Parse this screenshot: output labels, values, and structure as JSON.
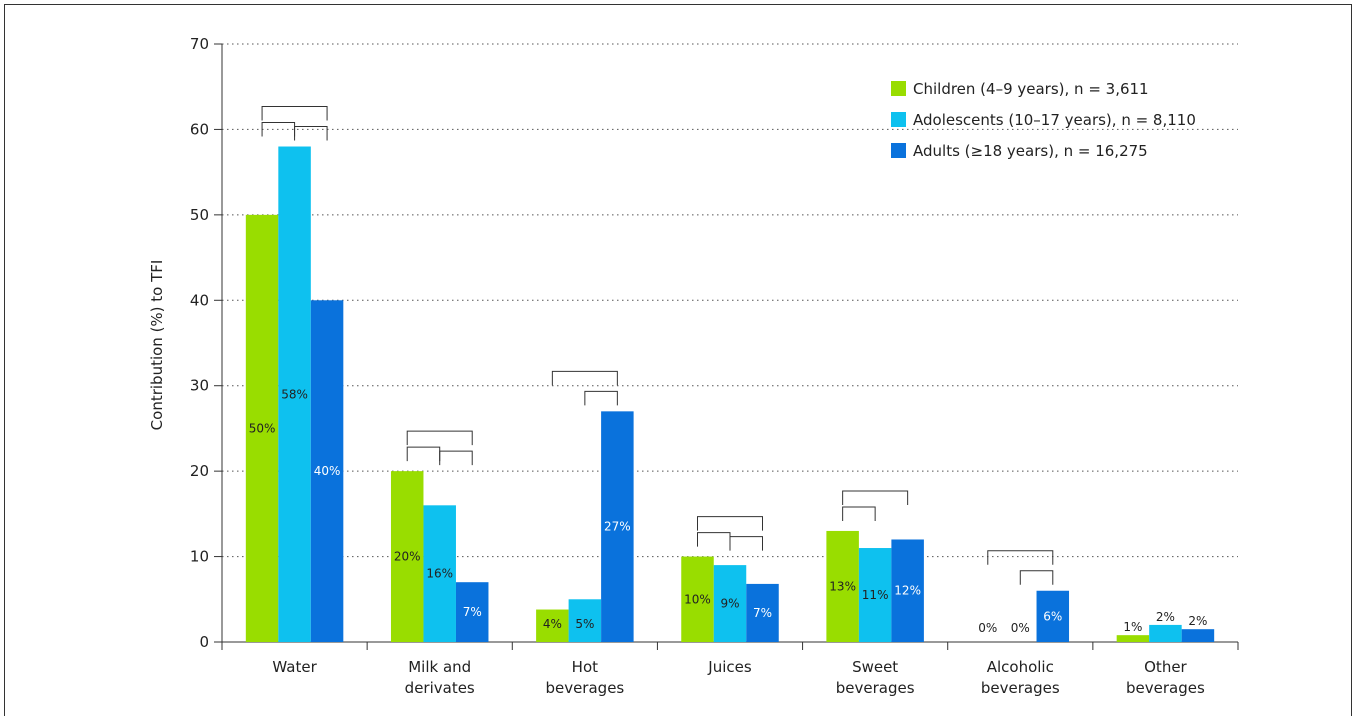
{
  "chart_data": {
    "type": "bar",
    "ylabel": "Contribution (%) to TFI",
    "xlabel": "",
    "ylim": [
      0,
      70
    ],
    "yticks": [
      0,
      10,
      20,
      30,
      40,
      50,
      60,
      70
    ],
    "grid": "horizontal dotted",
    "legend_position": "top-right",
    "categories": [
      [
        "Water"
      ],
      [
        "Milk and",
        "derivates"
      ],
      [
        "Hot",
        "beverages"
      ],
      [
        "Juices"
      ],
      [
        "Sweet",
        "beverages"
      ],
      [
        "Alcoholic",
        "beverages"
      ],
      [
        "Other",
        "beverages"
      ]
    ],
    "series": [
      {
        "name": "Children (4–9 years), n = 3,611",
        "color": "#99dd00",
        "values": [
          50,
          20,
          3.8,
          10,
          13,
          0,
          0.8
        ],
        "labels": [
          "50%",
          "20%",
          "4%",
          "10%",
          "13%",
          "0%",
          "1%"
        ],
        "label_color": "#222222"
      },
      {
        "name": "Adolescents (10–17 years), n = 8,110",
        "color": "#0ec1ef",
        "values": [
          58,
          16,
          5,
          9,
          11,
          0,
          2
        ],
        "labels": [
          "58%",
          "16%",
          "5%",
          "9%",
          "11%",
          "0%",
          "2%"
        ],
        "label_color": "#222222"
      },
      {
        "name": "Adults (≥18 years), n = 16,275",
        "color": "#0a72dc",
        "values": [
          40,
          7,
          27,
          6.8,
          12,
          6,
          1.5
        ],
        "labels": [
          "40%",
          "7%",
          "27%",
          "7%",
          "12%",
          "6%",
          "2%"
        ],
        "label_color": "#ffffff"
      }
    ],
    "significance_brackets": [
      {
        "category": 0,
        "from": 0,
        "to": 2
      },
      {
        "category": 0,
        "from": 0,
        "to": 1
      },
      {
        "category": 0,
        "from": 1,
        "to": 2
      },
      {
        "category": 1,
        "from": 0,
        "to": 2
      },
      {
        "category": 1,
        "from": 0,
        "to": 1
      },
      {
        "category": 1,
        "from": 1,
        "to": 2
      },
      {
        "category": 2,
        "from": 0,
        "to": 2
      },
      {
        "category": 2,
        "from": 1,
        "to": 2
      },
      {
        "category": 3,
        "from": 0,
        "to": 2
      },
      {
        "category": 3,
        "from": 0,
        "to": 1
      },
      {
        "category": 3,
        "from": 1,
        "to": 2
      },
      {
        "category": 4,
        "from": 0,
        "to": 2
      },
      {
        "category": 4,
        "from": 0,
        "to": 1
      },
      {
        "category": 5,
        "from": 0,
        "to": 2
      },
      {
        "category": 5,
        "from": 1,
        "to": 2
      }
    ]
  }
}
